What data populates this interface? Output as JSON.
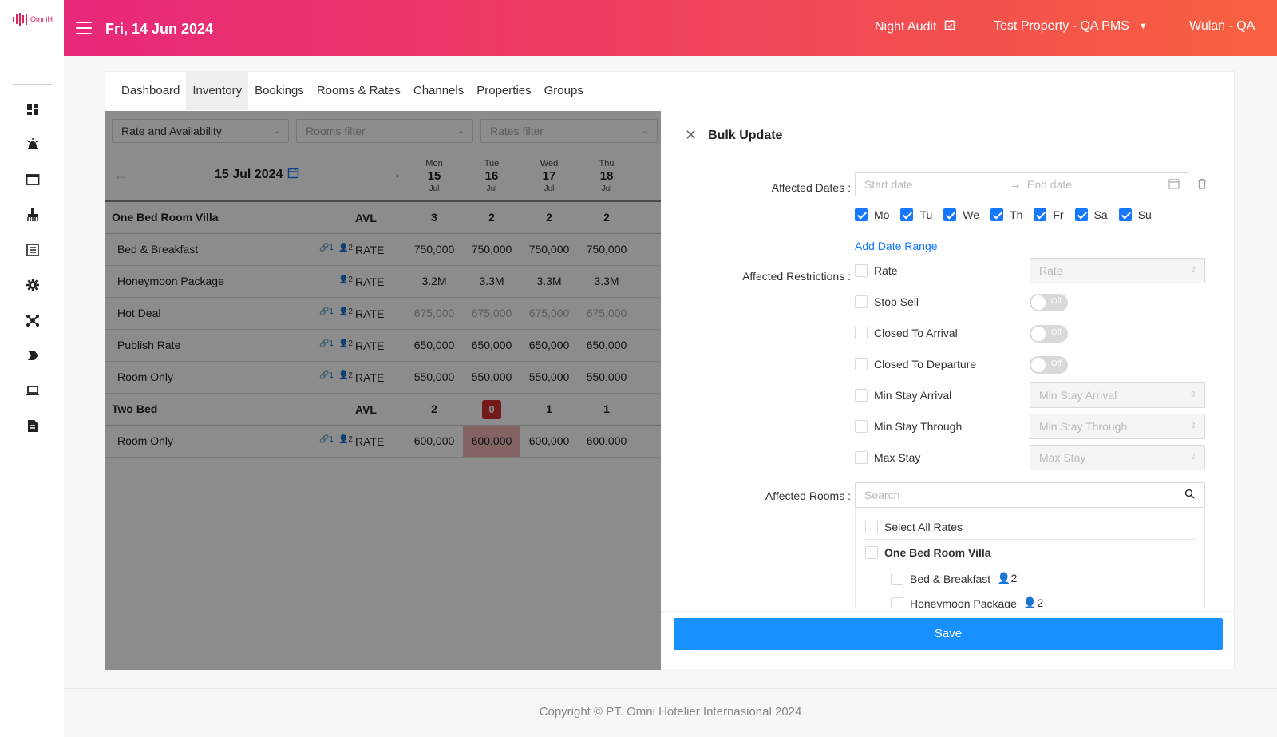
{
  "app": {
    "logo_text": "OmniH",
    "brand_color": "#e8287a"
  },
  "rail": {
    "icons": [
      "dashboard-icon",
      "alarm-icon",
      "window-icon",
      "housekeeping-icon",
      "list-icon",
      "gear-icon",
      "network-icon",
      "tag-icon",
      "laptop-icon",
      "report-icon"
    ]
  },
  "header": {
    "date": "Fri, 14 Jun 2024",
    "night_audit": "Night Audit",
    "property": "Test Property - QA PMS",
    "user": "Wulan - QA"
  },
  "tabs": [
    {
      "label": "Dashboard"
    },
    {
      "label": "Inventory",
      "active": true
    },
    {
      "label": "Bookings"
    },
    {
      "label": "Rooms & Rates"
    },
    {
      "label": "Channels"
    },
    {
      "label": "Properties"
    },
    {
      "label": "Groups"
    }
  ],
  "grid": {
    "filters": {
      "view": "Rate and Availability",
      "rooms_placeholder": "Rooms filter",
      "rates_placeholder": "Rates filter"
    },
    "current_date": "15 Jul 2024",
    "days": [
      {
        "name": "Mon",
        "day": "15",
        "month": "Jul"
      },
      {
        "name": "Tue",
        "day": "16",
        "month": "Jul"
      },
      {
        "name": "Wed",
        "day": "17",
        "month": "Jul"
      },
      {
        "name": "Thu",
        "day": "18",
        "month": "Jul"
      }
    ],
    "rows": [
      {
        "type": "room",
        "name": "One Bed Room Villa",
        "tag": "AVL",
        "values": [
          "3",
          "2",
          "2",
          "2"
        ]
      },
      {
        "type": "rate",
        "name": "Bed & Breakfast",
        "link": "1",
        "ppl": "2",
        "tag": "RATE",
        "values": [
          "750,000",
          "750,000",
          "750,000",
          "750,000"
        ]
      },
      {
        "type": "rate",
        "name": "Honeymoon Package",
        "link": "",
        "ppl": "2",
        "tag": "RATE",
        "values": [
          "3.2M",
          "3.3M",
          "3.3M",
          "3.3M"
        ]
      },
      {
        "type": "rate",
        "name": "Hot Deal",
        "link": "1",
        "ppl": "2",
        "tag": "RATE",
        "values": [
          "675,000",
          "675,000",
          "675,000",
          "675,000"
        ],
        "faded": true
      },
      {
        "type": "rate",
        "name": "Publish Rate",
        "link": "1",
        "ppl": "2",
        "tag": "RATE",
        "values": [
          "650,000",
          "650,000",
          "650,000",
          "650,000"
        ]
      },
      {
        "type": "rate",
        "name": "Room Only",
        "link": "1",
        "ppl": "2",
        "tag": "RATE",
        "values": [
          "550,000",
          "550,000",
          "550,000",
          "550,000"
        ]
      },
      {
        "type": "room",
        "name": "Two Bed",
        "tag": "AVL",
        "values": [
          "2",
          "0",
          "1",
          "1"
        ]
      },
      {
        "type": "rate",
        "name": "Room Only",
        "link": "1",
        "ppl": "2",
        "tag": "RATE",
        "values": [
          "600,000",
          "600,000",
          "600,000",
          "600,000"
        ]
      }
    ]
  },
  "drawer": {
    "title": "Bulk Update",
    "affected_dates_label": "Affected Dates",
    "start_placeholder": "Start date",
    "end_placeholder": "End date",
    "weekdays": [
      "Mo",
      "Tu",
      "We",
      "Th",
      "Fr",
      "Sa",
      "Su"
    ],
    "add_date_range": "Add Date Range",
    "affected_restrictions_label": "Affected Restrictions",
    "restrictions": [
      {
        "label": "Rate",
        "control": "input",
        "placeholder": "Rate"
      },
      {
        "label": "Stop Sell",
        "control": "toggle",
        "state": "Off"
      },
      {
        "label": "Closed To Arrival",
        "control": "toggle",
        "state": "Off"
      },
      {
        "label": "Closed To Departure",
        "control": "toggle",
        "state": "Off"
      },
      {
        "label": "Min Stay Arrival",
        "control": "input",
        "placeholder": "Min Stay Arrival"
      },
      {
        "label": "Min Stay Through",
        "control": "input",
        "placeholder": "Min Stay Through"
      },
      {
        "label": "Max Stay",
        "control": "input",
        "placeholder": "Max Stay"
      }
    ],
    "affected_rooms_label": "Affected Rooms",
    "search_placeholder": "Search",
    "tree": {
      "select_all": "Select All Rates",
      "room": "One Bed Room Villa",
      "rates": [
        {
          "label": "Bed & Breakfast",
          "ppl": "2"
        },
        {
          "label": "Honeymoon Package",
          "ppl": "2"
        }
      ]
    },
    "save_label": "Save"
  },
  "footer": {
    "copyright": "Copyright © PT. Omni Hotelier Internasional 2024"
  }
}
